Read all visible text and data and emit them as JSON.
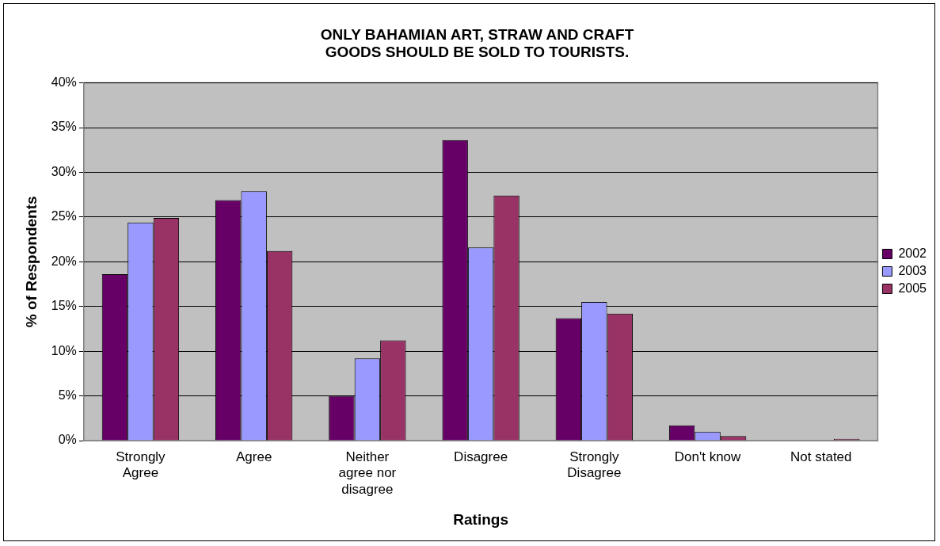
{
  "chart_data": {
    "type": "bar",
    "title": "ONLY BAHAMIAN ART, STRAW AND CRAFT\nGOODS SHOULD BE SOLD TO TOURISTS.",
    "xlabel": "Ratings",
    "ylabel": "% of Respondents",
    "categories": [
      "Strongly\nAgree",
      "Agree",
      "Neither\nagree nor\ndisagree",
      "Disagree",
      "Strongly\nDisagree",
      "Don't know",
      "Not stated"
    ],
    "series": [
      {
        "name": "2002",
        "color": "#660066",
        "values": [
          18.6,
          26.9,
          5.0,
          33.6,
          13.7,
          1.7,
          0
        ]
      },
      {
        "name": "2003",
        "color": "#9999ff",
        "values": [
          24.4,
          27.9,
          9.2,
          21.6,
          15.5,
          1.0,
          0
        ]
      },
      {
        "name": "2005",
        "color": "#993366",
        "values": [
          24.9,
          21.2,
          11.2,
          27.4,
          14.2,
          0.5,
          0.2
        ]
      }
    ],
    "ylim": [
      0,
      40
    ],
    "yticks": [
      {
        "value": 0,
        "label": "0%"
      },
      {
        "value": 5,
        "label": "5%"
      },
      {
        "value": 10,
        "label": "10%"
      },
      {
        "value": 15,
        "label": "15%"
      },
      {
        "value": 20,
        "label": "20%"
      },
      {
        "value": 25,
        "label": "25%"
      },
      {
        "value": 30,
        "label": "30%"
      },
      {
        "value": 35,
        "label": "35%"
      },
      {
        "value": 40,
        "label": "40%"
      }
    ],
    "grid": "y",
    "legend": "right"
  }
}
